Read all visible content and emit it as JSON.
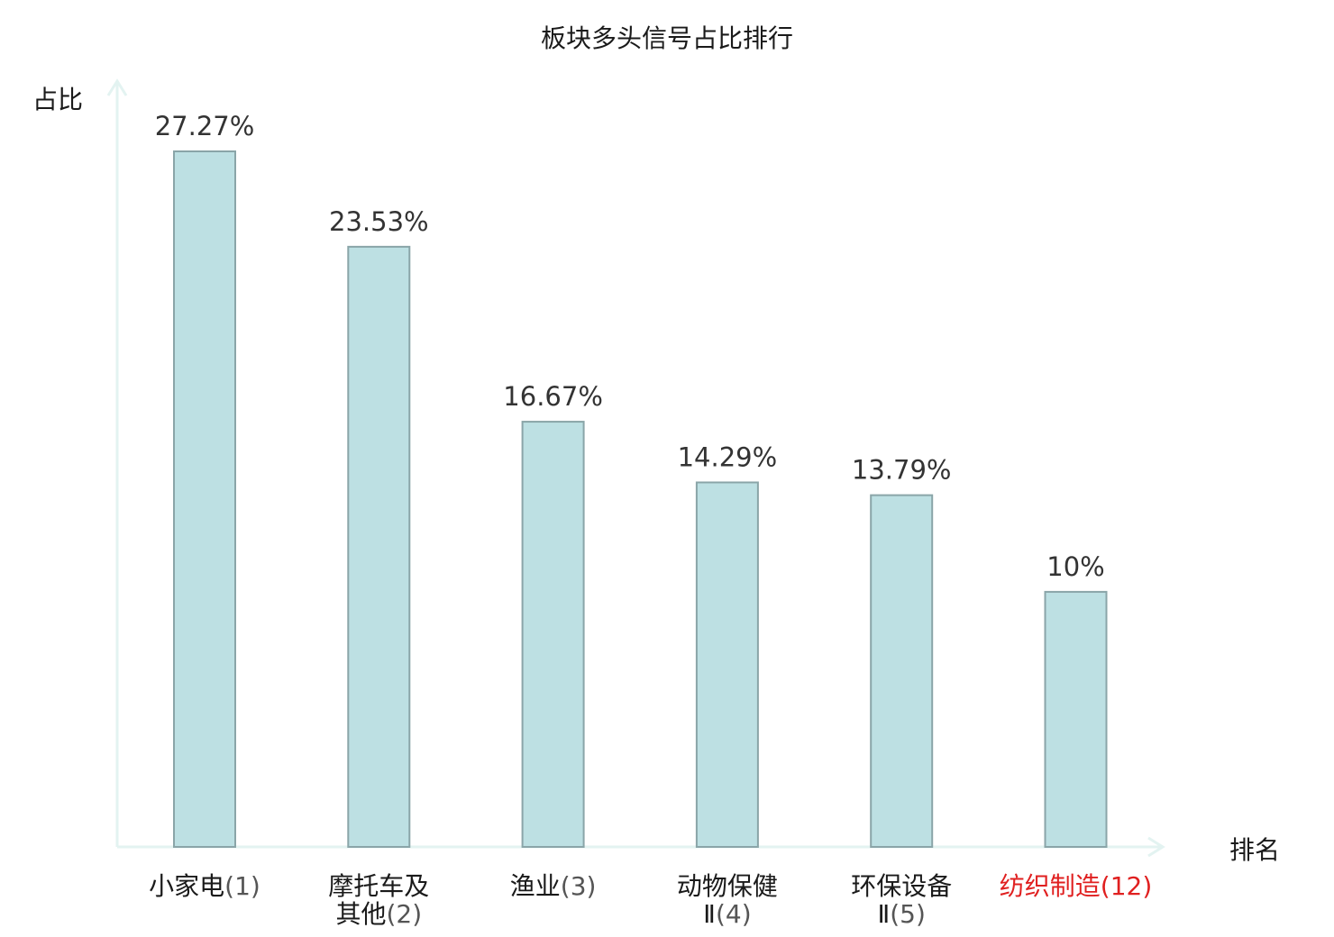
{
  "chart_data": {
    "type": "bar",
    "title": "板块多头信号占比排行",
    "ylabel": "占比",
    "xlabel": "排名",
    "categories": [
      {
        "name_lines": [
          "小家电"
        ],
        "rank": "(1)",
        "highlight": false
      },
      {
        "name_lines": [
          "摩托车及",
          "其他"
        ],
        "rank": "(2)",
        "highlight": false
      },
      {
        "name_lines": [
          "渔业"
        ],
        "rank": "(3)",
        "highlight": false
      },
      {
        "name_lines": [
          "动物保健",
          "Ⅱ"
        ],
        "rank": "(4)",
        "highlight": false
      },
      {
        "name_lines": [
          "环保设备",
          "Ⅱ"
        ],
        "rank": "(5)",
        "highlight": false
      },
      {
        "name_lines": [
          "纺织制造"
        ],
        "rank": "(12)",
        "highlight": true
      }
    ],
    "values": [
      27.27,
      23.53,
      16.67,
      14.29,
      13.79,
      10
    ],
    "value_labels": [
      "27.27%",
      "23.53%",
      "16.67%",
      "14.29%",
      "13.79%",
      "10%"
    ],
    "ylim": [
      0,
      30
    ],
    "grid": false,
    "colors": {
      "bar_fill": "#bde0e3",
      "bar_stroke": "#8aa5a8",
      "axis": "#e3f3f1",
      "highlight_text": "#e02020",
      "normal_text": "#1a1a1a",
      "rank_text": "#555555"
    }
  }
}
